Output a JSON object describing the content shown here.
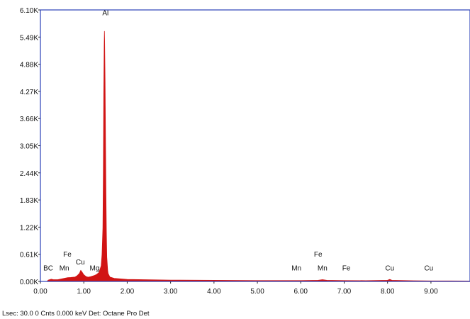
{
  "chart_data": {
    "type": "area",
    "xlim": [
      0,
      9.9
    ],
    "ylim": [
      0,
      6100
    ],
    "x_ticks": [
      "0.00",
      "1.00",
      "2.00",
      "3.00",
      "4.00",
      "5.00",
      "6.00",
      "7.00",
      "8.00",
      "9.00"
    ],
    "y_ticks": [
      "0.00K",
      "0.61K",
      "1.22K",
      "1.83K",
      "2.44K",
      "3.05K",
      "3.66K",
      "4.27K",
      "4.88K",
      "5.49K",
      "6.10K"
    ],
    "series": [
      {
        "color": "#d11414",
        "x": [
          0.0,
          0.15,
          0.18,
          0.25,
          0.3,
          0.4,
          0.45,
          0.55,
          0.63,
          0.7,
          0.8,
          0.85,
          0.9,
          0.93,
          0.96,
          1.0,
          1.05,
          1.1,
          1.15,
          1.2,
          1.25,
          1.3,
          1.35,
          1.4,
          1.42,
          1.44,
          1.45,
          1.46,
          1.47,
          1.475,
          1.48,
          1.49,
          1.5,
          1.51,
          1.52,
          1.53,
          1.55,
          1.56,
          1.6,
          1.7,
          2.0,
          3.0,
          4.0,
          5.0,
          6.0,
          6.4,
          6.5,
          6.6,
          7.0,
          7.5,
          8.0,
          8.05,
          8.1,
          8.6,
          9.0,
          9.9
        ],
        "y": [
          0,
          0,
          30,
          50,
          40,
          40,
          50,
          70,
          85,
          90,
          100,
          130,
          180,
          250,
          210,
          150,
          110,
          95,
          105,
          120,
          135,
          160,
          200,
          350,
          600,
          1200,
          2400,
          4200,
          5300,
          5620,
          5400,
          4500,
          3200,
          2000,
          1100,
          550,
          250,
          180,
          100,
          70,
          45,
          30,
          25,
          20,
          20,
          25,
          40,
          25,
          20,
          18,
          25,
          45,
          25,
          15,
          12,
          10
        ]
      }
    ],
    "peak_labels": [
      {
        "text": "Al",
        "x": 1.5,
        "y": 5980
      },
      {
        "text": "BC",
        "x": 0.18,
        "y": 245
      },
      {
        "text": "Mn",
        "x": 0.55,
        "y": 245
      },
      {
        "text": "Fe",
        "x": 0.62,
        "y": 560
      },
      {
        "text": "Cu",
        "x": 0.92,
        "y": 380
      },
      {
        "text": "Mg",
        "x": 1.25,
        "y": 245
      },
      {
        "text": "Mn",
        "x": 5.9,
        "y": 245
      },
      {
        "text": "Mn",
        "x": 6.5,
        "y": 245
      },
      {
        "text": "Fe",
        "x": 6.4,
        "y": 560
      },
      {
        "text": "Fe",
        "x": 7.05,
        "y": 245
      },
      {
        "text": "Cu",
        "x": 8.05,
        "y": 245
      },
      {
        "text": "Cu",
        "x": 8.95,
        "y": 245
      }
    ]
  },
  "footer": "Lsec: 30.0 0 Cnts  0.000 keV Det: Octane Pro Det"
}
